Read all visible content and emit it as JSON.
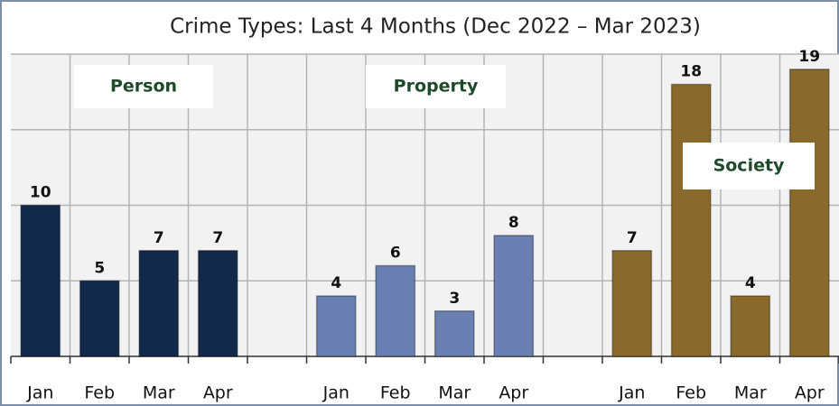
{
  "chart_data": {
    "type": "bar",
    "title": "Crime Types: Last 4 Months (Dec 2022 – Mar 2023)",
    "categories": [
      "Jan",
      "Feb",
      "Mar",
      "Apr",
      null,
      "Jan",
      "Feb",
      "Mar",
      "Apr",
      null,
      "Jan",
      "Feb",
      "Mar",
      "Apr"
    ],
    "series": [
      {
        "name": "Person",
        "color": "#13294b",
        "values": [
          10,
          5,
          7,
          7,
          null,
          null,
          null,
          null,
          null,
          null,
          null,
          null,
          null,
          null
        ]
      },
      {
        "name": "Property",
        "color": "#6a7fb2",
        "values": [
          null,
          null,
          null,
          null,
          null,
          4,
          6,
          3,
          8,
          null,
          null,
          null,
          null,
          null
        ]
      },
      {
        "name": "Society",
        "color": "#8a6a2b",
        "values": [
          null,
          null,
          null,
          null,
          null,
          null,
          null,
          null,
          null,
          null,
          7,
          18,
          4,
          19
        ]
      }
    ],
    "ylim": [
      0,
      20
    ],
    "yticks": [
      0,
      5,
      10,
      15,
      20
    ],
    "grid": true
  }
}
